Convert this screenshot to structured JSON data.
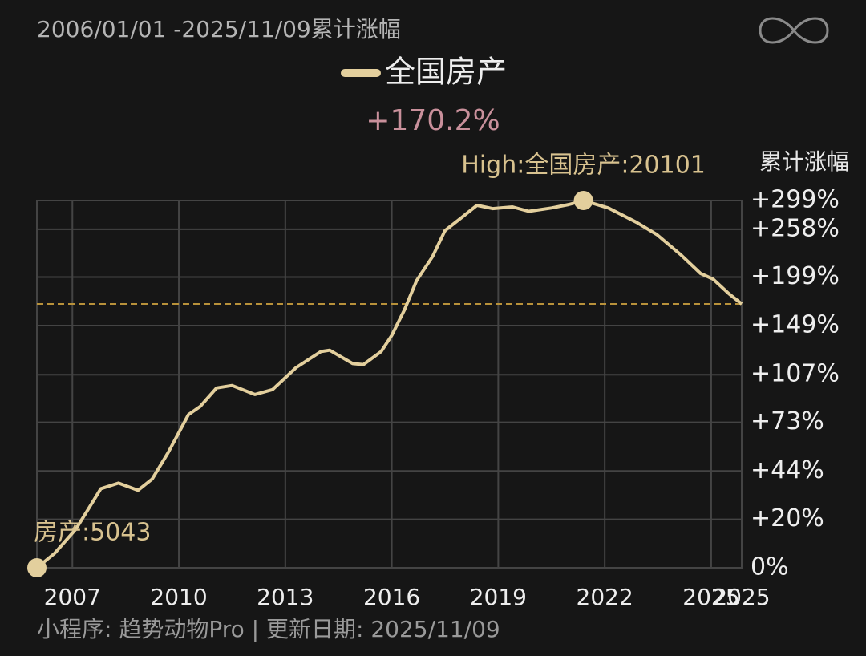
{
  "chart_data": {
    "type": "line",
    "title": "2006/01/01 -2025/11/09累计涨幅",
    "y_axis_label": "累计涨幅",
    "footer": "小程序: 趋势动物Pro | 更新日期: 2025/11/09",
    "yscale": "log-growth",
    "grid": true,
    "x": [
      2006.0,
      2006.5,
      2007.1,
      2007.45,
      2007.8,
      2008.3,
      2008.85,
      2009.25,
      2009.7,
      2010.27,
      2010.6,
      2011.06,
      2011.5,
      2012.14,
      2012.64,
      2013.3,
      2014.0,
      2014.25,
      2014.9,
      2015.2,
      2015.7,
      2016.0,
      2016.36,
      2016.7,
      2017.15,
      2017.5,
      2017.94,
      2018.4,
      2018.84,
      2019.4,
      2019.86,
      2020.5,
      2020.99,
      2021.4,
      2022.1,
      2022.9,
      2023.47,
      2024.15,
      2024.7,
      2025.05,
      2025.5,
      2025.86
    ],
    "series": [
      {
        "name": "全国房产",
        "color": "#e3cf9d",
        "values": [
          0,
          5.6,
          15.7,
          24.8,
          34.7,
          37.6,
          33.9,
          39.7,
          54.4,
          78.1,
          83.6,
          96.9,
          98.7,
          92.1,
          95.7,
          112.5,
          125.8,
          127,
          115.8,
          115,
          125.8,
          140,
          164.4,
          195.1,
          223.1,
          256.3,
          273.1,
          291.8,
          287,
          289.5,
          283,
          288,
          293,
          299,
          288,
          267.4,
          250.9,
          225,
          203.1,
          196.8,
          180.8,
          170.2
        ]
      }
    ],
    "reference_line": {
      "value": 170.2,
      "label": "+170.2%",
      "color": "#b8913a"
    },
    "annotations": [
      {
        "x": 2006.0,
        "y": 0,
        "label": "房产:5043"
      },
      {
        "x": 2021.4,
        "y": 299,
        "label": "High:全国房产:20101"
      }
    ],
    "xlim": [
      2006.0,
      2025.86
    ],
    "xticks": [
      2007,
      2010,
      2013,
      2016,
      2019,
      2022,
      2025,
      {
        "value": 2025.86,
        "label": "2025"
      }
    ],
    "ylim": [
      0,
      299
    ],
    "yticks": [
      {
        "value": 0,
        "label": "0%"
      },
      {
        "value": 20,
        "label": "+20%"
      },
      {
        "value": 44,
        "label": "+44%"
      },
      {
        "value": 73,
        "label": "+73%"
      },
      {
        "value": 107,
        "label": "+107%"
      },
      {
        "value": 149,
        "label": "+149%"
      },
      {
        "value": 199,
        "label": "+199%"
      },
      {
        "value": 258,
        "label": "+258%"
      },
      {
        "value": 299,
        "label": "+299%"
      }
    ]
  }
}
